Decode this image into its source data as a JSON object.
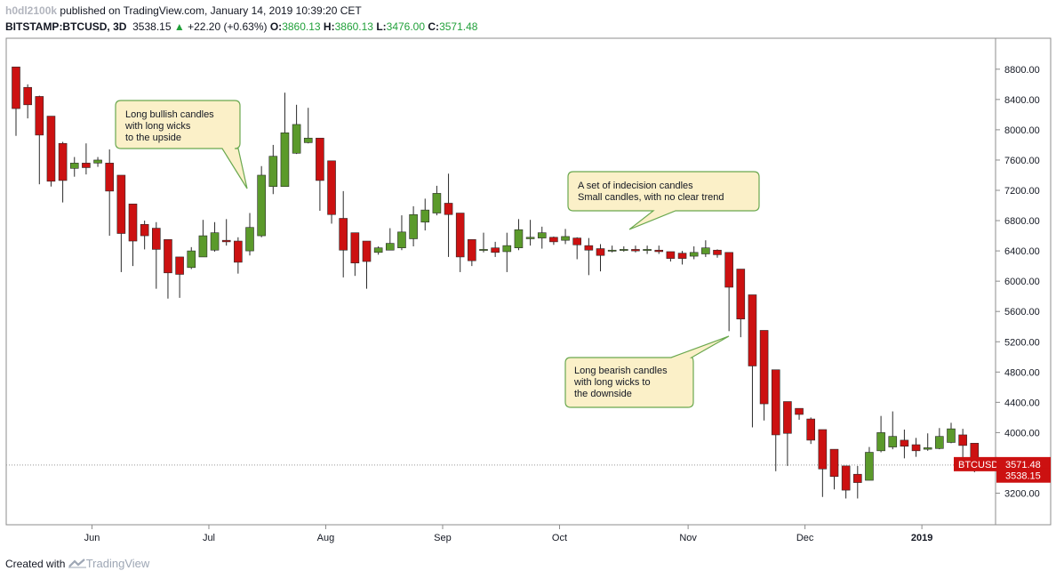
{
  "header": {
    "author": "h0dl2100k",
    "published_text": "published on TradingView.com, January 14, 2019 10:39:20 CET",
    "symbol": "BITSTAMP:BTCUSD, 3D",
    "last": "3538.15",
    "change_arrow": "▲",
    "change": "+22.20 (+0.63%)",
    "o_label": "O:",
    "o_value": "3860.13",
    "h_label": "H:",
    "h_value": "3860.13",
    "l_label": "L:",
    "l_value": "3476.00",
    "c_label": "C:",
    "c_value": "3571.48"
  },
  "footer": {
    "created_with": "Created with",
    "brand": "TradingView",
    "brand_icon": "tradingview-logo-icon"
  },
  "colors": {
    "up": "#5b9a2b",
    "down": "#cc1111",
    "annotation_bg": "#fbf0c8",
    "annotation_border": "#6aa84f",
    "price_tag": "#cc1111"
  },
  "chart_data": {
    "type": "candlestick",
    "symbol": "BTCUSD",
    "timeframe": "3D",
    "ylim": [
      2800,
      9000
    ],
    "y_ticks": [
      "3200.00",
      "3600.00",
      "4000.00",
      "4400.00",
      "4800.00",
      "5200.00",
      "5600.00",
      "6000.00",
      "6400.00",
      "6800.00",
      "7200.00",
      "7600.00",
      "8000.00",
      "8400.00",
      "8800.00"
    ],
    "x_ticks": [
      {
        "label": "Jun",
        "index": 6.5
      },
      {
        "label": "Jul",
        "index": 16.5
      },
      {
        "label": "Aug",
        "index": 26.5
      },
      {
        "label": "Sep",
        "index": 36.5
      },
      {
        "label": "Oct",
        "index": 46.5
      },
      {
        "label": "Nov",
        "index": 57.5
      },
      {
        "label": "Dec",
        "index": 67.5
      },
      {
        "label": "2019",
        "index": 77.5
      }
    ],
    "price_labels": [
      {
        "name": "BTCUSD",
        "value": 3571.48,
        "text": "BTCUSD"
      },
      {
        "name": "close",
        "value": 3571.48,
        "text": "3571.48"
      },
      {
        "name": "last",
        "value": 3538.15,
        "text": "3538.15"
      }
    ],
    "candles": [
      {
        "o": 8830,
        "h": 8830,
        "l": 7920,
        "c": 8280
      },
      {
        "o": 8560,
        "h": 8600,
        "l": 8150,
        "c": 8330
      },
      {
        "o": 8440,
        "h": 8450,
        "l": 7280,
        "c": 7930
      },
      {
        "o": 8180,
        "h": 8180,
        "l": 7250,
        "c": 7320
      },
      {
        "o": 7820,
        "h": 7840,
        "l": 7040,
        "c": 7330
      },
      {
        "o": 7490,
        "h": 7640,
        "l": 7380,
        "c": 7560
      },
      {
        "o": 7560,
        "h": 7820,
        "l": 7410,
        "c": 7500
      },
      {
        "o": 7560,
        "h": 7640,
        "l": 7510,
        "c": 7600
      },
      {
        "o": 7560,
        "h": 7740,
        "l": 6600,
        "c": 7190
      },
      {
        "o": 7400,
        "h": 7400,
        "l": 6120,
        "c": 6630
      },
      {
        "o": 7020,
        "h": 7020,
        "l": 6200,
        "c": 6530
      },
      {
        "o": 6750,
        "h": 6800,
        "l": 6420,
        "c": 6600
      },
      {
        "o": 6700,
        "h": 6780,
        "l": 5900,
        "c": 6420
      },
      {
        "o": 6550,
        "h": 6550,
        "l": 5770,
        "c": 6110
      },
      {
        "o": 6320,
        "h": 6320,
        "l": 5780,
        "c": 6090
      },
      {
        "o": 6180,
        "h": 6450,
        "l": 6160,
        "c": 6400
      },
      {
        "o": 6320,
        "h": 6810,
        "l": 6320,
        "c": 6600
      },
      {
        "o": 6410,
        "h": 6780,
        "l": 6390,
        "c": 6640
      },
      {
        "o": 6540,
        "h": 6820,
        "l": 6470,
        "c": 6520
      },
      {
        "o": 6530,
        "h": 6580,
        "l": 6100,
        "c": 6250
      },
      {
        "o": 6400,
        "h": 6900,
        "l": 6340,
        "c": 6710
      },
      {
        "o": 6600,
        "h": 7520,
        "l": 6580,
        "c": 7400
      },
      {
        "o": 7250,
        "h": 7800,
        "l": 7150,
        "c": 7650
      },
      {
        "o": 7250,
        "h": 8490,
        "l": 7250,
        "c": 7960
      },
      {
        "o": 7690,
        "h": 8330,
        "l": 7680,
        "c": 8070
      },
      {
        "o": 7830,
        "h": 8290,
        "l": 7820,
        "c": 7890
      },
      {
        "o": 7890,
        "h": 7890,
        "l": 6930,
        "c": 7330
      },
      {
        "o": 7590,
        "h": 7590,
        "l": 6760,
        "c": 6880
      },
      {
        "o": 6830,
        "h": 7190,
        "l": 6050,
        "c": 6410
      },
      {
        "o": 6640,
        "h": 6640,
        "l": 6070,
        "c": 6240
      },
      {
        "o": 6530,
        "h": 6530,
        "l": 5900,
        "c": 6260
      },
      {
        "o": 6380,
        "h": 6460,
        "l": 6350,
        "c": 6440
      },
      {
        "o": 6410,
        "h": 6700,
        "l": 6410,
        "c": 6500
      },
      {
        "o": 6440,
        "h": 6870,
        "l": 6410,
        "c": 6650
      },
      {
        "o": 6560,
        "h": 6990,
        "l": 6460,
        "c": 6880
      },
      {
        "o": 6780,
        "h": 7090,
        "l": 6670,
        "c": 6940
      },
      {
        "o": 6900,
        "h": 7260,
        "l": 6870,
        "c": 7160
      },
      {
        "o": 7030,
        "h": 7420,
        "l": 6320,
        "c": 6880
      },
      {
        "o": 6900,
        "h": 6900,
        "l": 6120,
        "c": 6320
      },
      {
        "o": 6550,
        "h": 6550,
        "l": 6200,
        "c": 6270
      },
      {
        "o": 6410,
        "h": 6640,
        "l": 6380,
        "c": 6420
      },
      {
        "o": 6440,
        "h": 6520,
        "l": 6320,
        "c": 6380
      },
      {
        "o": 6390,
        "h": 6640,
        "l": 6120,
        "c": 6470
      },
      {
        "o": 6440,
        "h": 6820,
        "l": 6410,
        "c": 6680
      },
      {
        "o": 6560,
        "h": 6810,
        "l": 6470,
        "c": 6580
      },
      {
        "o": 6570,
        "h": 6720,
        "l": 6430,
        "c": 6640
      },
      {
        "o": 6580,
        "h": 6590,
        "l": 6480,
        "c": 6520
      },
      {
        "o": 6540,
        "h": 6690,
        "l": 6490,
        "c": 6590
      },
      {
        "o": 6570,
        "h": 6580,
        "l": 6290,
        "c": 6480
      },
      {
        "o": 6470,
        "h": 6570,
        "l": 6080,
        "c": 6410
      },
      {
        "o": 6430,
        "h": 6490,
        "l": 6130,
        "c": 6340
      },
      {
        "o": 6400,
        "h": 6470,
        "l": 6380,
        "c": 6410
      },
      {
        "o": 6410,
        "h": 6460,
        "l": 6390,
        "c": 6420
      },
      {
        "o": 6420,
        "h": 6470,
        "l": 6380,
        "c": 6400
      },
      {
        "o": 6410,
        "h": 6470,
        "l": 6360,
        "c": 6420
      },
      {
        "o": 6410,
        "h": 6470,
        "l": 6360,
        "c": 6390
      },
      {
        "o": 6390,
        "h": 6390,
        "l": 6260,
        "c": 6300
      },
      {
        "o": 6370,
        "h": 6400,
        "l": 6220,
        "c": 6300
      },
      {
        "o": 6330,
        "h": 6460,
        "l": 6290,
        "c": 6380
      },
      {
        "o": 6360,
        "h": 6540,
        "l": 6320,
        "c": 6440
      },
      {
        "o": 6410,
        "h": 6420,
        "l": 6310,
        "c": 6350
      },
      {
        "o": 6380,
        "h": 6380,
        "l": 5340,
        "c": 5920
      },
      {
        "o": 6160,
        "h": 6160,
        "l": 5260,
        "c": 5500
      },
      {
        "o": 5820,
        "h": 5820,
        "l": 4070,
        "c": 4880
      },
      {
        "o": 5350,
        "h": 5350,
        "l": 4160,
        "c": 4380
      },
      {
        "o": 4830,
        "h": 4830,
        "l": 3490,
        "c": 3970
      },
      {
        "o": 4410,
        "h": 4410,
        "l": 3560,
        "c": 3990
      },
      {
        "o": 4320,
        "h": 4320,
        "l": 4170,
        "c": 4240
      },
      {
        "o": 4180,
        "h": 4200,
        "l": 3850,
        "c": 3900
      },
      {
        "o": 4040,
        "h": 4040,
        "l": 3150,
        "c": 3520
      },
      {
        "o": 3780,
        "h": 3780,
        "l": 3250,
        "c": 3420
      },
      {
        "o": 3560,
        "h": 3560,
        "l": 3130,
        "c": 3240
      },
      {
        "o": 3450,
        "h": 3560,
        "l": 3130,
        "c": 3340
      },
      {
        "o": 3370,
        "h": 3810,
        "l": 3370,
        "c": 3740
      },
      {
        "o": 3760,
        "h": 4220,
        "l": 3740,
        "c": 4000
      },
      {
        "o": 3810,
        "h": 4280,
        "l": 3780,
        "c": 3950
      },
      {
        "o": 3900,
        "h": 4040,
        "l": 3660,
        "c": 3820
      },
      {
        "o": 3840,
        "h": 3930,
        "l": 3680,
        "c": 3760
      },
      {
        "o": 3780,
        "h": 3990,
        "l": 3760,
        "c": 3800
      },
      {
        "o": 3790,
        "h": 4060,
        "l": 3780,
        "c": 3950
      },
      {
        "o": 3870,
        "h": 4130,
        "l": 3860,
        "c": 4050
      },
      {
        "o": 3970,
        "h": 4050,
        "l": 3500,
        "c": 3830
      },
      {
        "o": 3860,
        "h": 3860,
        "l": 3476,
        "c": 3571
      }
    ],
    "annotations": [
      {
        "id": "bullish",
        "lines": [
          "Long bullish candles",
          "with long wicks",
          "to the upside"
        ]
      },
      {
        "id": "indecision",
        "lines": [
          "A set of indecision candles",
          "Small candles, with no clear trend"
        ]
      },
      {
        "id": "bearish",
        "lines": [
          "Long bearish candles",
          "with long wicks to",
          "the downside"
        ]
      }
    ]
  }
}
